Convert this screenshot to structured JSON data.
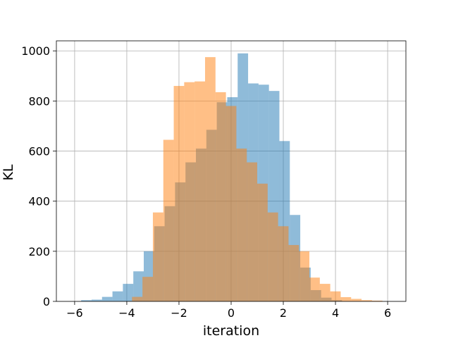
{
  "chart_data": {
    "type": "bar",
    "title": "",
    "xlabel": "iteration",
    "ylabel": "KL",
    "xlim": [
      -6.7,
      6.7
    ],
    "ylim": [
      0,
      1040
    ],
    "grid": true,
    "x_ticks": [
      -6,
      -4,
      -2,
      0,
      2,
      4,
      6
    ],
    "x_tick_labels": [
      "−6",
      "−4",
      "−2",
      "0",
      "2",
      "4",
      "6"
    ],
    "y_ticks": [
      0,
      200,
      400,
      600,
      800,
      1000
    ],
    "y_tick_labels": [
      "0",
      "200",
      "400",
      "600",
      "800",
      "1000"
    ],
    "series": [
      {
        "color": "#1f77b4",
        "opacity": 0.5,
        "bin_edges": [
          -5.75,
          -5.35,
          -4.95,
          -4.55,
          -4.15,
          -3.75,
          -3.35,
          -2.95,
          -2.55,
          -2.15,
          -1.75,
          -1.35,
          -0.95,
          -0.55,
          -0.15,
          0.25,
          0.65,
          1.05,
          1.45,
          1.85,
          2.25,
          2.65,
          3.05,
          3.45,
          3.85,
          4.25
        ],
        "counts": [
          5,
          7,
          18,
          40,
          70,
          120,
          200,
          300,
          380,
          475,
          555,
          610,
          685,
          795,
          815,
          990,
          870,
          865,
          840,
          640,
          345,
          135,
          45,
          15,
          5
        ]
      },
      {
        "color": "#ff7f0e",
        "opacity": 0.5,
        "bin_edges": [
          -3.8,
          -3.4,
          -3.0,
          -2.6,
          -2.2,
          -1.8,
          -1.4,
          -1.0,
          -0.6,
          -0.2,
          0.2,
          0.6,
          1.0,
          1.4,
          1.8,
          2.2,
          2.6,
          3.0,
          3.4,
          3.8,
          4.2,
          4.6,
          5.0,
          5.4,
          5.8
        ],
        "counts": [
          18,
          98,
          355,
          645,
          860,
          875,
          878,
          975,
          835,
          780,
          610,
          555,
          470,
          355,
          300,
          225,
          200,
          95,
          70,
          40,
          17,
          10,
          5,
          3
        ]
      }
    ]
  }
}
